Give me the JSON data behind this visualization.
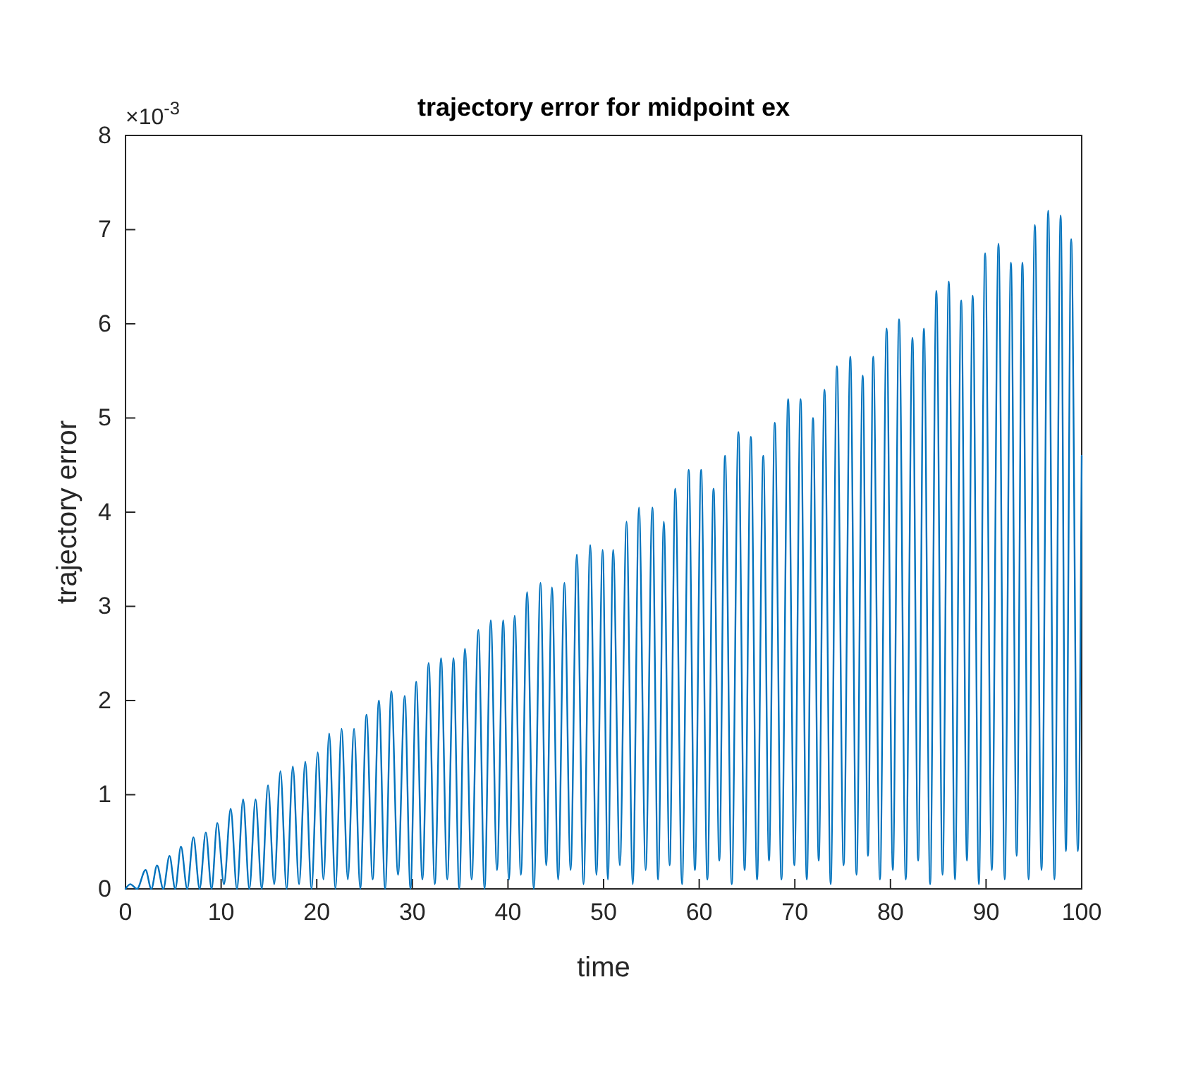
{
  "chart_data": {
    "type": "line",
    "title": "trajectory error for midpoint ex",
    "xlabel": "time",
    "ylabel": "trajectory error",
    "annotations": [
      "×10$^{-3}$"
    ],
    "xlim": [
      0,
      100
    ],
    "xticks": [
      0,
      10,
      20,
      30,
      40,
      50,
      60,
      70,
      80,
      90,
      100
    ],
    "ylim": [
      0,
      8
    ],
    "yticks": [
      0,
      1,
      2,
      3,
      4,
      5,
      6,
      7,
      8
    ],
    "grid": false,
    "marker": "none",
    "line_style": "solid",
    "series": [
      {
        "color": "#0072bd",
        "x": [
          0,
          0.5,
          1.2,
          2.1,
          2.7,
          3.3,
          3.95,
          4.6,
          5.2,
          5.8,
          6.45,
          7.1,
          7.75,
          8.4,
          9.0,
          9.6,
          10.3,
          11.0,
          11.65,
          12.3,
          12.95,
          13.6,
          14.25,
          14.9,
          15.55,
          16.2,
          16.85,
          17.5,
          18.15,
          18.8,
          19.45,
          20.1,
          20.7,
          21.3,
          21.95,
          22.6,
          23.25,
          23.9,
          24.55,
          25.2,
          25.85,
          26.5,
          27.15,
          27.8,
          28.5,
          29.2,
          29.8,
          30.4,
          31.05,
          31.7,
          32.35,
          33.0,
          33.65,
          34.3,
          34.9,
          35.5,
          36.2,
          36.9,
          37.55,
          38.2,
          38.85,
          39.5,
          40.1,
          40.7,
          41.35,
          42.0,
          42.7,
          43.4,
          44.0,
          44.6,
          45.25,
          45.9,
          46.55,
          47.2,
          47.9,
          48.6,
          49.25,
          49.9,
          50.45,
          51.0,
          51.7,
          52.4,
          53.05,
          53.7,
          54.4,
          55.1,
          55.7,
          56.3,
          56.9,
          57.5,
          58.2,
          58.9,
          59.55,
          60.2,
          60.85,
          61.5,
          62.1,
          62.7,
          63.4,
          64.1,
          64.75,
          65.4,
          66.05,
          66.7,
          67.3,
          67.9,
          68.6,
          69.3,
          69.95,
          70.6,
          71.25,
          71.9,
          72.5,
          73.1,
          73.75,
          74.4,
          75.1,
          75.8,
          76.45,
          77.1,
          77.65,
          78.2,
          78.9,
          79.6,
          80.25,
          80.9,
          81.6,
          82.3,
          82.9,
          83.5,
          84.15,
          84.8,
          85.45,
          86.1,
          86.75,
          87.4,
          88.0,
          88.6,
          89.25,
          89.9,
          90.6,
          91.3,
          91.95,
          92.6,
          93.2,
          93.8,
          94.45,
          95.1,
          95.8,
          96.5,
          97.15,
          97.8,
          98.35,
          98.9,
          99.6,
          100
        ],
        "values": [
          0,
          0.05,
          0,
          0.2,
          0,
          0.25,
          0,
          0.35,
          0,
          0.45,
          0,
          0.55,
          0,
          0.6,
          0,
          0.7,
          0.05,
          0.85,
          0,
          0.95,
          0,
          0.95,
          0,
          1.1,
          0.05,
          1.25,
          0,
          1.3,
          0.05,
          1.35,
          0,
          1.45,
          0.1,
          1.65,
          0,
          1.7,
          0.1,
          1.7,
          0,
          1.85,
          0.1,
          2,
          0,
          2.1,
          0.15,
          2.05,
          0,
          2.2,
          0.1,
          2.4,
          0.05,
          2.45,
          0.1,
          2.45,
          0,
          2.55,
          0.1,
          2.75,
          0,
          2.85,
          0.2,
          2.85,
          0.1,
          2.9,
          0.15,
          3.15,
          0,
          3.25,
          0.25,
          3.2,
          0.1,
          3.25,
          0.2,
          3.55,
          0.05,
          3.65,
          0.15,
          3.6,
          0.1,
          3.6,
          0.25,
          3.9,
          0.05,
          4.05,
          0.2,
          4.05,
          0.1,
          3.9,
          0.25,
          4.25,
          0.05,
          4.45,
          0.2,
          4.45,
          0.1,
          4.25,
          0.3,
          4.6,
          0.05,
          4.85,
          0.2,
          4.8,
          0.1,
          4.6,
          0.3,
          4.95,
          0.1,
          5.2,
          0.25,
          5.2,
          0.1,
          5,
          0.3,
          5.3,
          0.05,
          5.55,
          0.25,
          5.65,
          0.15,
          5.45,
          0.35,
          5.65,
          0.1,
          5.95,
          0.2,
          6.05,
          0.1,
          5.85,
          0.3,
          5.95,
          0.05,
          6.35,
          0.15,
          6.45,
          0.1,
          6.25,
          0.3,
          6.3,
          0.05,
          6.75,
          0.2,
          6.85,
          0.1,
          6.65,
          0.35,
          6.65,
          0.1,
          7.05,
          0.2,
          7.2,
          0.1,
          7.15,
          0.4,
          6.9,
          0.4,
          4.6
        ]
      }
    ]
  }
}
